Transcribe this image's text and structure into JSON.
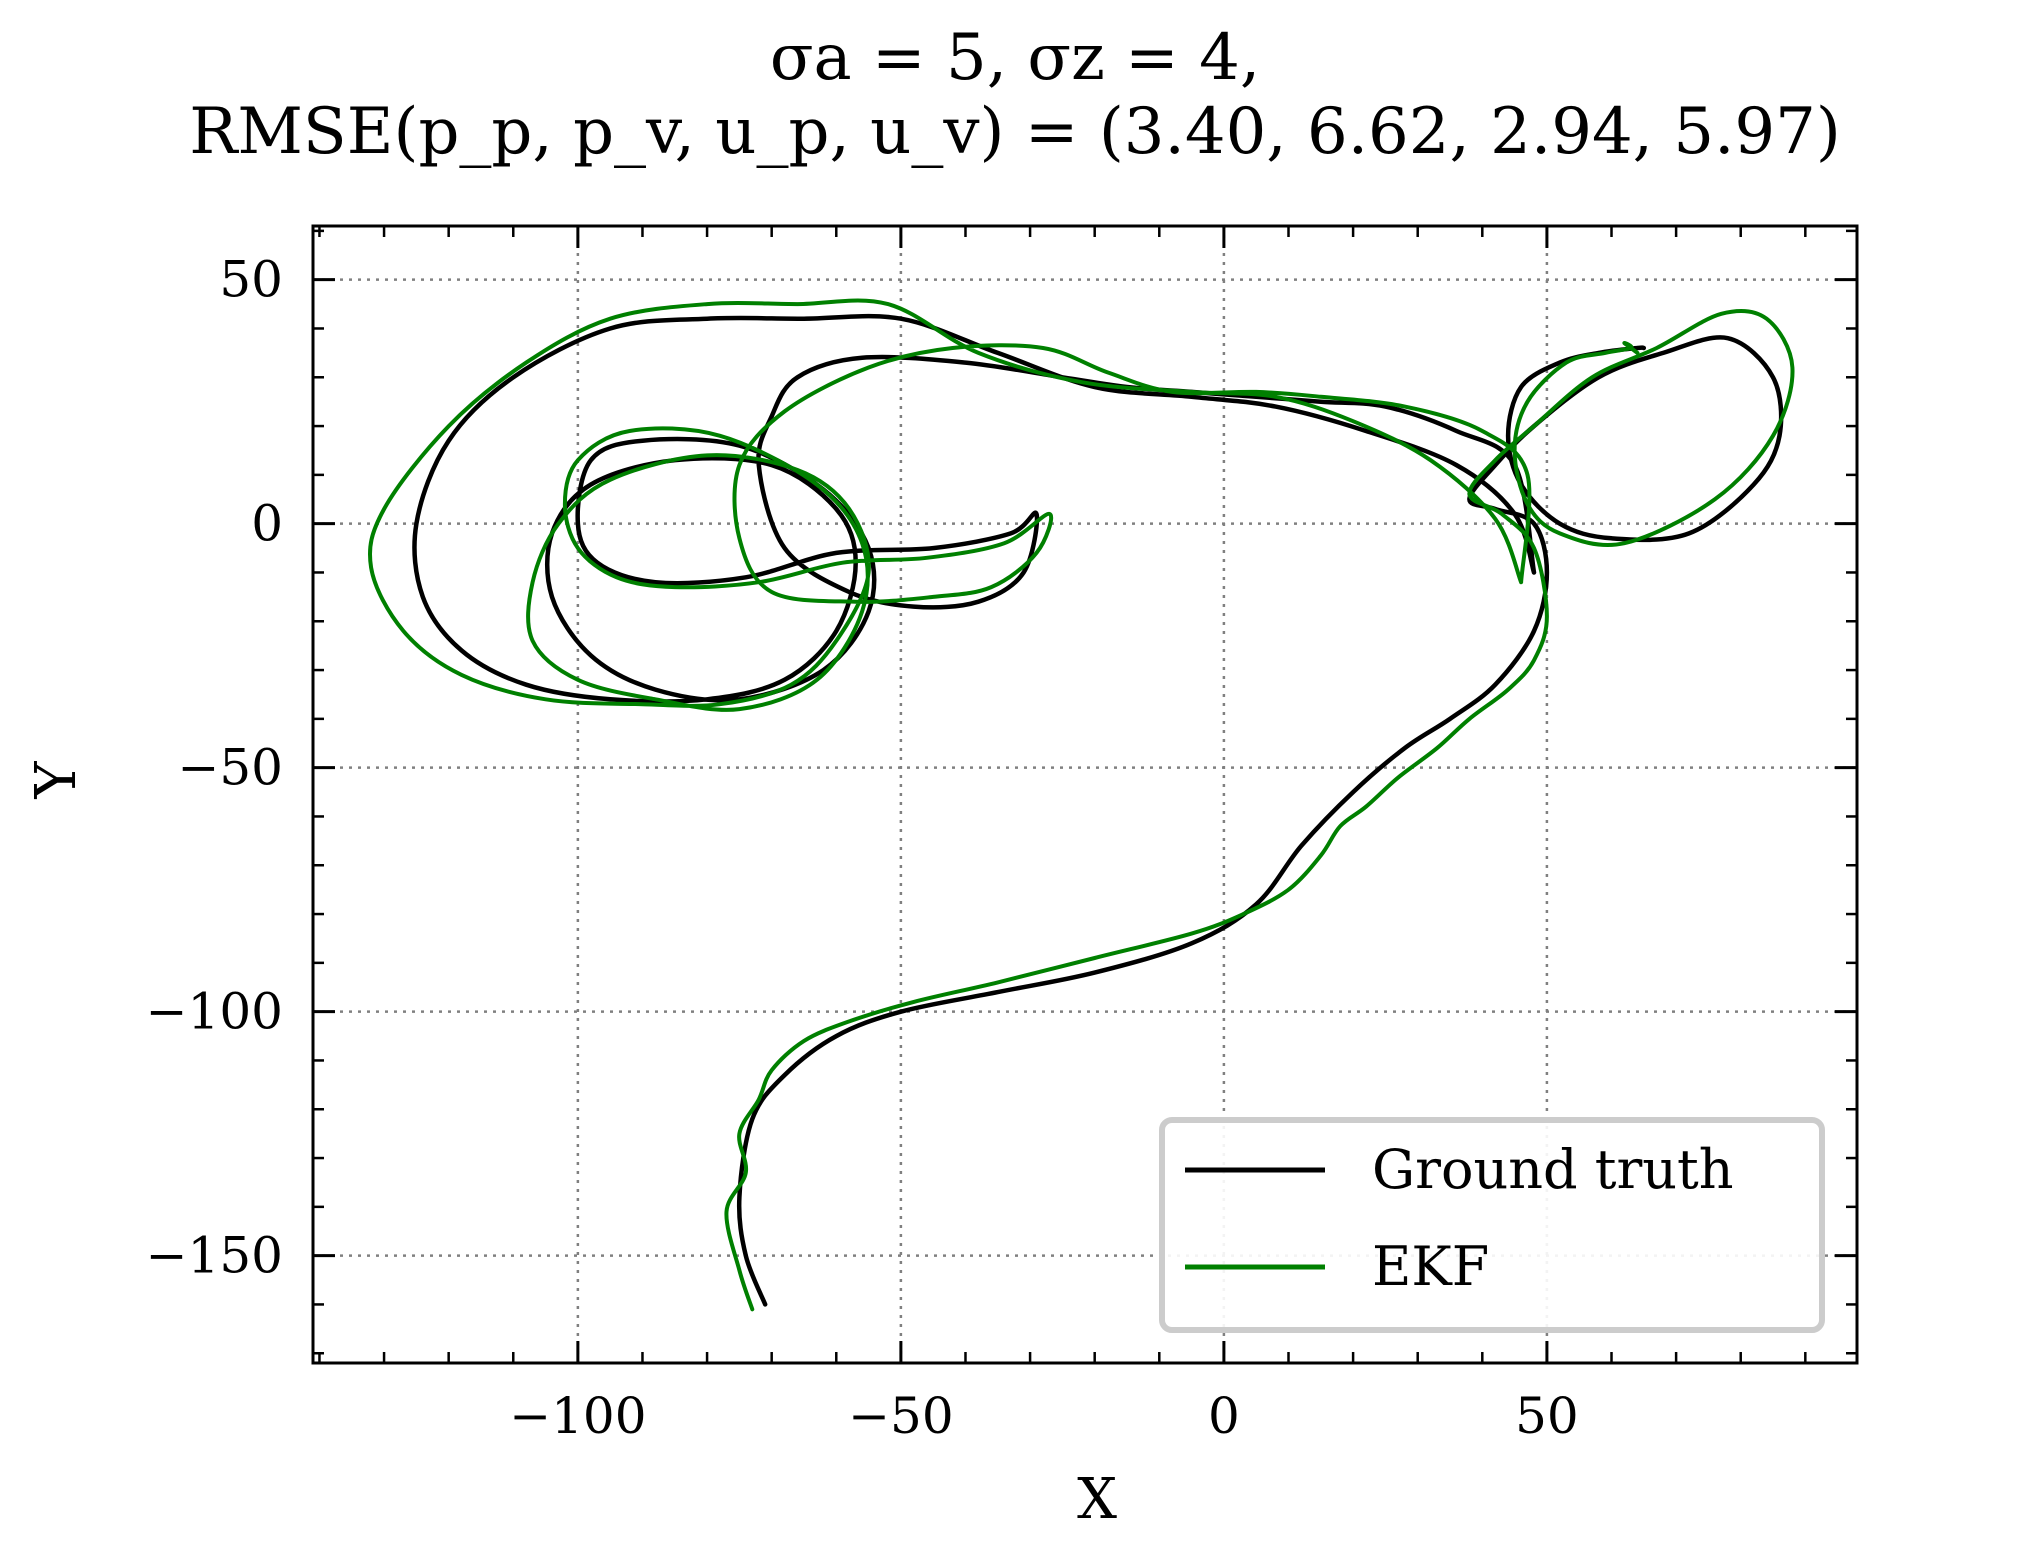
{
  "chart_data": {
    "type": "line",
    "title": "σa = 5, σz = 4,",
    "subtitle": "RMSE(p_p, p_v, u_p, u_v) = (3.40, 6.62, 2.94, 5.97)",
    "xlabel": "X",
    "ylabel": "Y",
    "xlim": [
      -141,
      98
    ],
    "ylim": [
      -172,
      61
    ],
    "xticks": [
      -100,
      -50,
      0,
      50
    ],
    "yticks": [
      50,
      0,
      -50,
      -100,
      -150
    ],
    "xtick_labels": [
      "−100",
      "−50",
      "0",
      "50"
    ],
    "ytick_labels": [
      "50",
      "0",
      "−50",
      "−100",
      "−150"
    ],
    "grid": true,
    "legend_position": "lower-right",
    "series": [
      {
        "name": "Ground truth",
        "color": "#000000",
        "x": [
          -71,
          -74,
          -75,
          -73,
          -68,
          -60,
          -50,
          -35,
          -20,
          -5,
          5,
          12,
          20,
          28,
          35,
          42,
          48,
          50,
          48,
          42,
          38,
          42,
          48,
          58,
          68,
          78,
          85,
          86,
          82,
          72,
          60,
          52,
          46,
          44,
          46,
          52,
          58,
          64,
          65
        ],
        "y": [
          -160,
          -150,
          -138,
          -122,
          -113,
          -105,
          -100,
          -96,
          -92,
          -86,
          -78,
          -66,
          -55,
          -46,
          -40,
          -33,
          -22,
          -10,
          0,
          3,
          5,
          12,
          20,
          30,
          35,
          38,
          30,
          18,
          8,
          -2,
          -3,
          0,
          8,
          18,
          28,
          33,
          35,
          36,
          36
        ]
      },
      {
        "name": "Ground truth",
        "color": "#000000",
        "x": [
          48,
          45,
          36,
          22,
          8,
          -5,
          -20,
          -35,
          -50,
          -65,
          -80,
          -95,
          -110,
          -120,
          -125,
          -124,
          -118,
          -108,
          -95,
          -80,
          -68,
          -60,
          -57,
          -60,
          -70,
          -85,
          -98,
          -104,
          -104,
          -98,
          -88,
          -75,
          -62,
          -55,
          -55,
          -62,
          -75,
          -90,
          -98,
          -100,
          -97,
          -88,
          -74,
          -60,
          -45,
          -33,
          -29,
          -31,
          -38,
          -48,
          -58,
          -68,
          -72,
          -70,
          -66,
          -56,
          -40,
          -25,
          -15,
          -5,
          5,
          15,
          25,
          36,
          45,
          48
        ],
        "y": [
          -10,
          2,
          12,
          19,
          24,
          26,
          28,
          35,
          42,
          42,
          42,
          40,
          30,
          17,
          0,
          -15,
          -26,
          -33,
          -36,
          -36,
          -32,
          -22,
          -8,
          3,
          12,
          13,
          8,
          -2,
          -15,
          -27,
          -34,
          -36,
          -30,
          -18,
          -5,
          7,
          16,
          17,
          13,
          0,
          -8,
          -12,
          -11,
          -6,
          -5,
          -2,
          2,
          -10,
          -16,
          -17,
          -14,
          -5,
          12,
          22,
          30,
          34,
          33,
          30,
          28,
          27,
          26,
          25,
          24,
          19,
          12,
          -10
        ]
      },
      {
        "name": "EKF",
        "color": "#008000",
        "x": [
          -73,
          -75,
          -77,
          -74,
          -75,
          -72,
          -70,
          -65,
          -58,
          -48,
          -35,
          -20,
          -5,
          3,
          10,
          15,
          18,
          22,
          27,
          33,
          38,
          44,
          48,
          50,
          48,
          43,
          38,
          42,
          48,
          57,
          67,
          77,
          84,
          88,
          85,
          76,
          62,
          52,
          47,
          45,
          47,
          53,
          59,
          63,
          62,
          64
        ],
        "y": [
          -161,
          -153,
          -141,
          -133,
          -125,
          -118,
          -112,
          -106,
          -102,
          -98,
          -94,
          -89,
          -84,
          -80,
          -75,
          -68,
          -62,
          -58,
          -52,
          -46,
          -40,
          -34,
          -28,
          -19,
          -5,
          2,
          6,
          13,
          20,
          30,
          36,
          43,
          42,
          32,
          18,
          5,
          -4,
          -2,
          4,
          15,
          25,
          33,
          35,
          36,
          37,
          35
        ]
      },
      {
        "name": "EKF",
        "color": "#008000",
        "x": [
          46,
          42,
          32,
          20,
          8,
          -5,
          -22,
          -38,
          -52,
          -66,
          -80,
          -95,
          -108,
          -120,
          -130,
          -132,
          -127,
          -118,
          -105,
          -90,
          -78,
          -67,
          -60,
          -55,
          -58,
          -66,
          -80,
          -95,
          -103,
          -107,
          -107,
          -100,
          -88,
          -75,
          -63,
          -56,
          -56,
          -63,
          -78,
          -92,
          -100,
          -102,
          -100,
          -94,
          -85,
          -72,
          -59,
          -46,
          -34,
          -27,
          -29,
          -36,
          -45,
          -57,
          -70,
          -75,
          -75,
          -68,
          -55,
          -42,
          -28,
          -18,
          -8,
          5,
          15,
          28,
          40,
          47,
          46
        ],
        "y": [
          -12,
          1,
          13,
          21,
          26,
          27,
          29,
          35,
          45,
          45,
          45,
          42,
          33,
          20,
          3,
          -9,
          -22,
          -31,
          -36,
          -37,
          -37,
          -33,
          -24,
          -10,
          3,
          11,
          14,
          9,
          0,
          -12,
          -24,
          -32,
          -36,
          -38,
          -32,
          -18,
          -4,
          8,
          18,
          19,
          13,
          4,
          -5,
          -11,
          -13,
          -12,
          -8,
          -7,
          -4,
          2,
          -6,
          -13,
          -15,
          -16,
          -14,
          -3,
          12,
          23,
          32,
          36,
          36,
          31,
          27,
          27,
          26,
          24,
          19,
          10,
          -12
        ]
      }
    ]
  }
}
